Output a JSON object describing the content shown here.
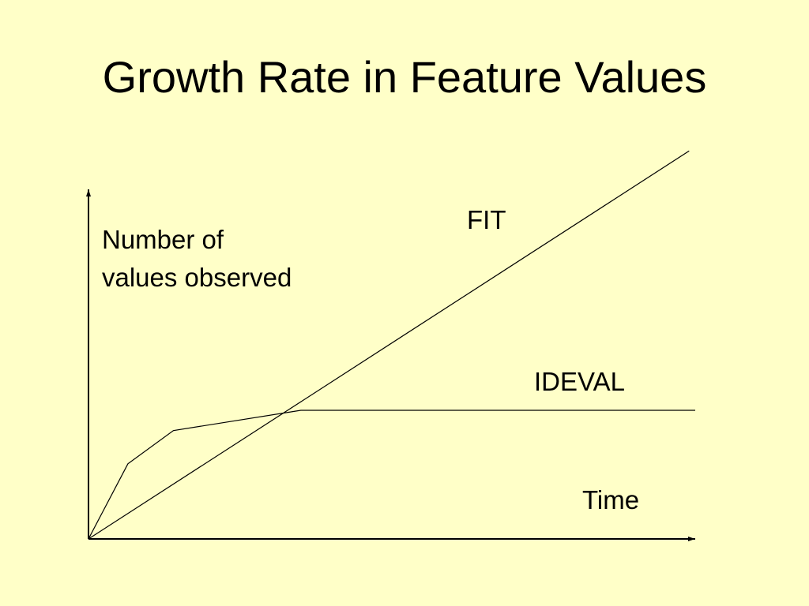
{
  "slide": {
    "title": "Growth Rate in Feature Values"
  },
  "chart_data": {
    "type": "line",
    "title": "Growth Rate in Feature Values",
    "xlabel": "Time",
    "ylabel_lines": [
      "Number of",
      "values observed"
    ],
    "xlim": [
      0,
      100
    ],
    "ylim": [
      0,
      100
    ],
    "grid": false,
    "series": [
      {
        "name": "FIT",
        "x": [
          0,
          99
        ],
        "y": [
          0,
          111
        ]
      },
      {
        "name": "IDEVAL",
        "x": [
          0,
          6.5,
          14,
          35,
          100
        ],
        "y": [
          0,
          21.5,
          31,
          36.8,
          36.8
        ]
      }
    ],
    "colors": {
      "background": "#FFFFC8",
      "line": "#000000",
      "text": "#000000"
    }
  }
}
